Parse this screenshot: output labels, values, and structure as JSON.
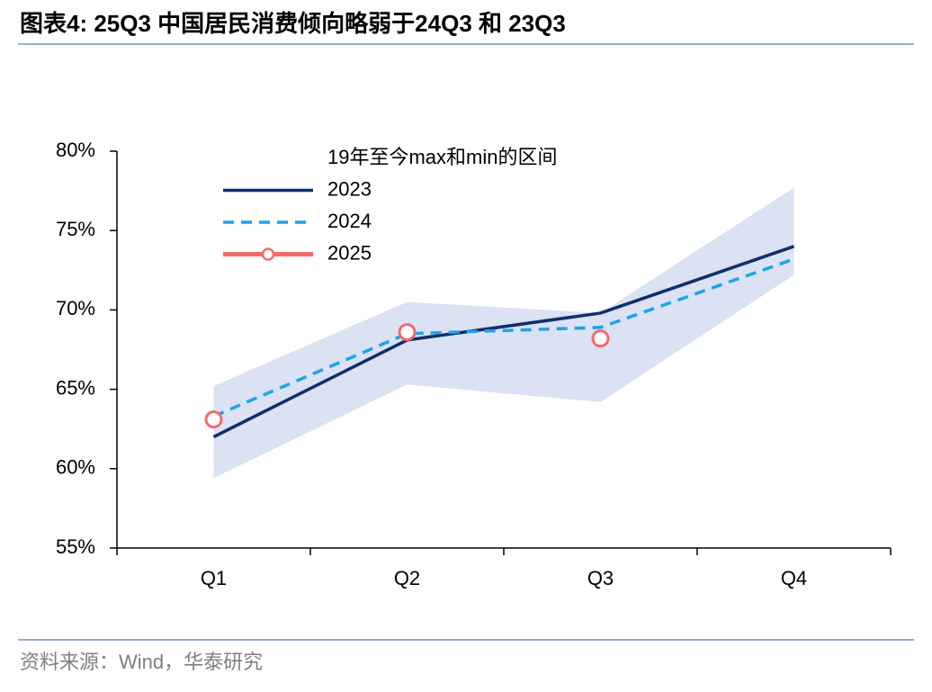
{
  "header": {
    "title": "图表4:   25Q3 中国居民消费倾向略弱于24Q3 和 23Q3"
  },
  "chart_data": {
    "type": "line",
    "categories": [
      "Q1",
      "Q2",
      "Q3",
      "Q4"
    ],
    "ylim": [
      55,
      80
    ],
    "yticks": [
      {
        "value": 55,
        "label": "55%"
      },
      {
        "value": 60,
        "label": "60%"
      },
      {
        "value": 65,
        "label": "65%"
      },
      {
        "value": 70,
        "label": "70%"
      },
      {
        "value": 75,
        "label": "75%"
      },
      {
        "value": 80,
        "label": "80%"
      }
    ],
    "legend": "upper-left",
    "band": {
      "name": "19年至今max和min的区间",
      "color": "#dae2f3",
      "high": [
        65.2,
        70.5,
        69.8,
        77.7
      ],
      "low": [
        59.4,
        65.3,
        64.2,
        72.2
      ]
    },
    "series": [
      {
        "name": "2023",
        "color": "#0d2f6e",
        "style": "solid",
        "values": [
          62.0,
          68.1,
          69.8,
          74.0
        ]
      },
      {
        "name": "2024",
        "color": "#1ea3e8",
        "style": "dashed",
        "values": [
          63.3,
          68.5,
          68.9,
          73.2
        ]
      },
      {
        "name": "2025",
        "color": "#f26b6b",
        "style": "smooth-marker",
        "values": [
          63.1,
          68.6,
          68.2,
          null
        ]
      }
    ]
  },
  "footer": {
    "source": "资料来源：Wind，华泰研究"
  }
}
